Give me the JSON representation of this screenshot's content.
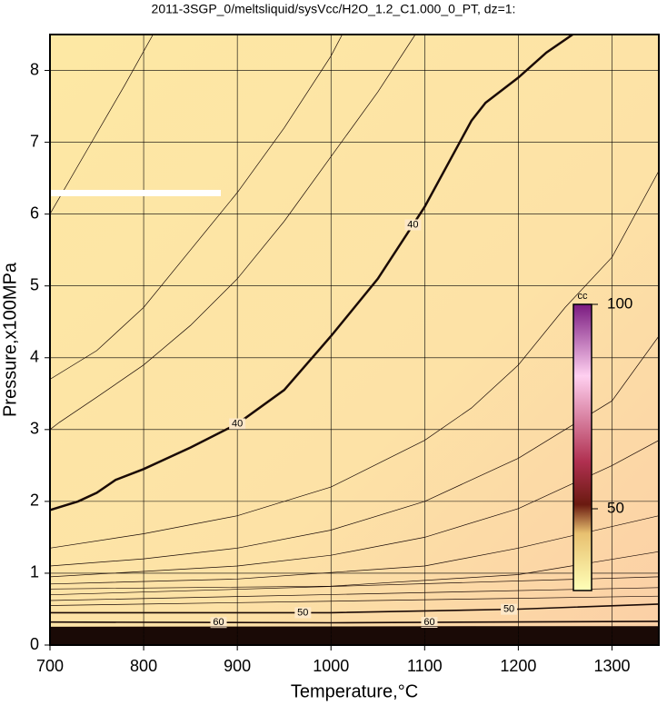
{
  "chart_data": {
    "type": "contour",
    "title": "2011-3SGP_0/meltsliquid/sysVcc/H2O_1.2_C1.000_0_PT, dz=1:",
    "x_label": "Temperature,°C",
    "y_label": "Pressure,x100MPa",
    "xlim": [
      700,
      1350
    ],
    "ylim": [
      0,
      8.5
    ],
    "xticks": [
      700,
      800,
      900,
      1000,
      1100,
      1200,
      1300
    ],
    "yticks": [
      0,
      1,
      2,
      3,
      4,
      5,
      6,
      7,
      8
    ],
    "grid": true,
    "contours": [
      {
        "level": 40,
        "x": [
          700,
          730,
          750,
          770,
          800,
          850,
          900,
          950,
          1000,
          1050,
          1100,
          1150,
          1165,
          1200,
          1230,
          1258
        ],
        "y": [
          1.88,
          2.0,
          2.12,
          2.3,
          2.45,
          2.75,
          3.08,
          3.55,
          4.3,
          5.1,
          6.1,
          7.3,
          7.55,
          7.9,
          8.25,
          8.5
        ]
      },
      {
        "level": 50,
        "x": [
          700,
          1000,
          1200,
          1350
        ],
        "y": [
          0.45,
          0.45,
          0.5,
          0.57
        ]
      },
      {
        "level": 60,
        "x": [
          700,
          1000,
          1350
        ],
        "y": [
          0.32,
          0.31,
          0.33
        ]
      },
      {
        "x": [
          700,
          710,
          750,
          800,
          850,
          900,
          950,
          1000,
          1050,
          1090
        ],
        "y": [
          3.0,
          3.1,
          3.45,
          3.9,
          4.45,
          5.1,
          5.9,
          6.8,
          7.7,
          8.5
        ]
      },
      {
        "x": [
          700,
          750,
          800,
          850,
          900,
          950,
          1000,
          1012
        ],
        "y": [
          3.7,
          4.1,
          4.7,
          5.5,
          6.3,
          7.2,
          8.2,
          8.5
        ]
      },
      {
        "x": [
          700,
          740,
          780,
          810
        ],
        "y": [
          6.0,
          6.9,
          7.8,
          8.5
        ]
      },
      {
        "x": [
          700,
          800,
          900,
          1000,
          1100,
          1150,
          1200,
          1250,
          1300,
          1350
        ],
        "y": [
          1.35,
          1.55,
          1.8,
          2.2,
          2.85,
          3.3,
          3.9,
          4.7,
          5.4,
          6.6
        ]
      },
      {
        "x": [
          700,
          800,
          900,
          1000,
          1100,
          1200,
          1300,
          1350
        ],
        "y": [
          1.1,
          1.2,
          1.35,
          1.6,
          2.0,
          2.6,
          3.4,
          4.3
        ]
      },
      {
        "x": [
          700,
          900,
          1000,
          1100,
          1200,
          1300,
          1350
        ],
        "y": [
          0.95,
          1.1,
          1.25,
          1.5,
          1.9,
          2.5,
          2.85
        ]
      },
      {
        "x": [
          700,
          900,
          1100,
          1200,
          1350
        ],
        "y": [
          0.85,
          0.92,
          1.1,
          1.35,
          1.8
        ]
      },
      {
        "x": [
          700,
          1000,
          1200,
          1350
        ],
        "y": [
          0.78,
          0.82,
          0.98,
          1.3
        ]
      },
      {
        "x": [
          700,
          1350
        ],
        "y": [
          0.7,
          0.95
        ]
      },
      {
        "x": [
          700,
          1350
        ],
        "y": [
          0.62,
          0.8
        ]
      },
      {
        "x": [
          700,
          1350
        ],
        "y": [
          0.55,
          0.68
        ]
      },
      {
        "x": [
          700,
          1350
        ],
        "y": [
          0.25,
          0.26
        ]
      },
      {
        "x": [
          700,
          1350
        ],
        "y": [
          0.2,
          0.2
        ]
      },
      {
        "x": [
          700,
          1350
        ],
        "y": [
          0.15,
          0.15
        ]
      },
      {
        "x": [
          700,
          1350
        ],
        "y": [
          0.1,
          0.1
        ]
      }
    ],
    "colorbar": {
      "label": "cc",
      "clim": [
        30,
        100
      ],
      "ticks": [
        50,
        100
      ]
    }
  }
}
